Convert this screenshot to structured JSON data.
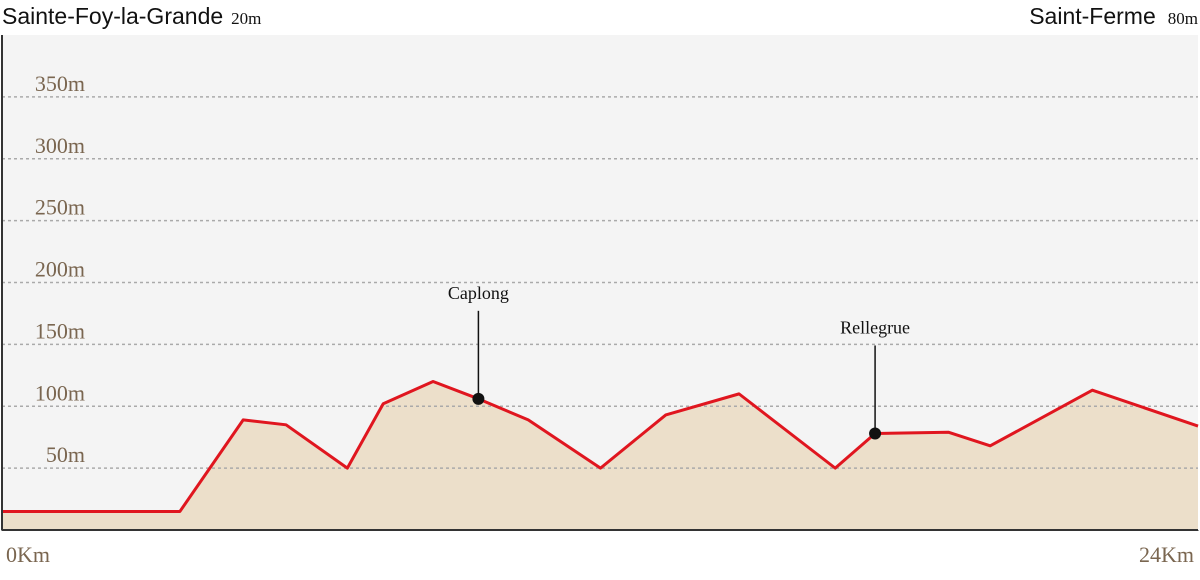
{
  "chart_data": {
    "type": "area",
    "start": {
      "name": "Sainte-Foy-la-Grande",
      "elevation": "20m"
    },
    "end": {
      "name": "Saint-Ferme",
      "elevation": "80m"
    },
    "x": [
      0,
      3.57,
      4.84,
      5.7,
      6.93,
      7.65,
      8.65,
      9.56,
      10.56,
      12.01,
      13.32,
      14.79,
      16.72,
      17.52,
      18.99,
      19.83,
      21.88,
      24
    ],
    "values": [
      15,
      15,
      89,
      85,
      50,
      102,
      120,
      106,
      89,
      50,
      93,
      110,
      50,
      78,
      79,
      68,
      113,
      84
    ],
    "line_color": "#e0161f",
    "fill_color": "#ecdfca",
    "markers": [
      {
        "label": "Caplong",
        "x": 9.56,
        "y": 106
      },
      {
        "label": "Rellegrue",
        "x": 17.52,
        "y": 78
      }
    ],
    "xlim": [
      0,
      24
    ],
    "xticks": [
      {
        "value": 0,
        "label": "0Km"
      },
      {
        "value": 24,
        "label": "24Km"
      }
    ],
    "ylim": [
      0,
      400
    ],
    "yticks": [
      {
        "value": 50,
        "label": "50m"
      },
      {
        "value": 100,
        "label": "100m"
      },
      {
        "value": 150,
        "label": "150m"
      },
      {
        "value": 200,
        "label": "200m"
      },
      {
        "value": 250,
        "label": "250m"
      },
      {
        "value": 300,
        "label": "300m"
      },
      {
        "value": 350,
        "label": "350m"
      }
    ],
    "grid": true
  }
}
